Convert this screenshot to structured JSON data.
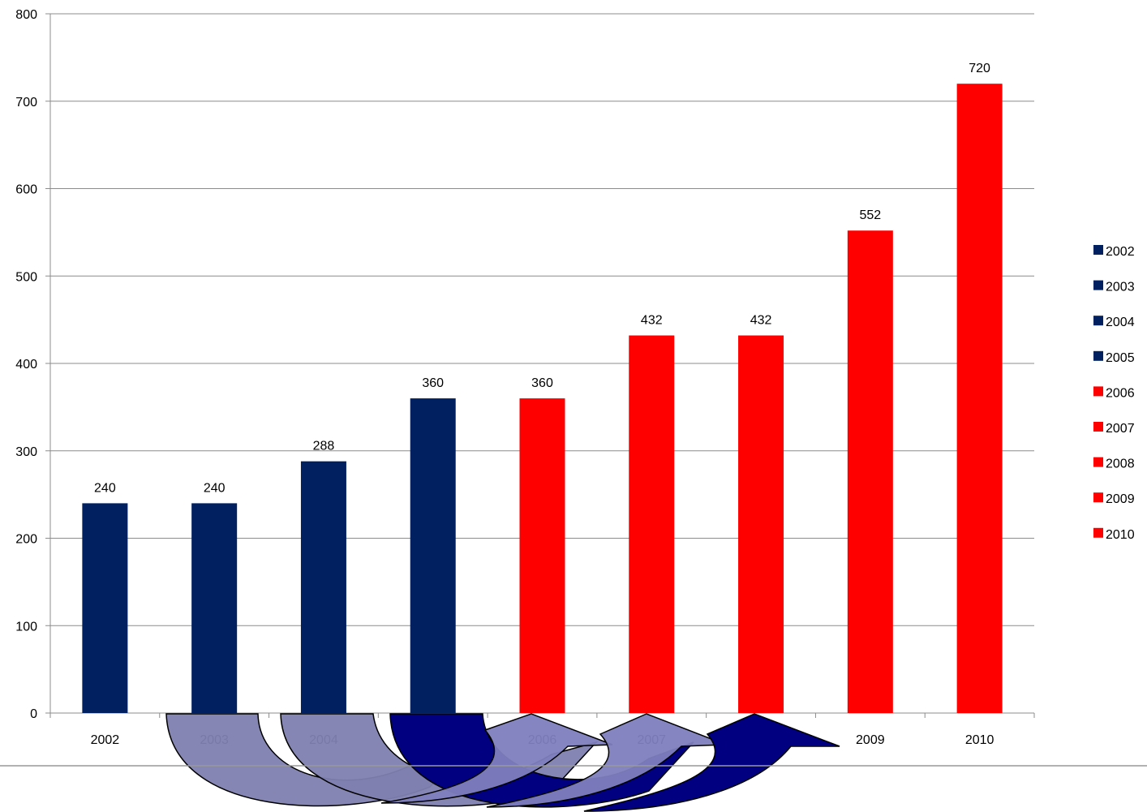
{
  "chart_data": {
    "type": "bar",
    "categories": [
      "2002",
      "2003",
      "2004",
      "2005",
      "2006",
      "2007",
      "2008",
      "2009",
      "2010"
    ],
    "values": [
      240,
      240,
      288,
      360,
      360,
      432,
      432,
      552,
      720
    ],
    "data_labels": [
      "240",
      "240",
      "288",
      "360",
      "360",
      "432",
      "432",
      "552",
      "720"
    ],
    "x_tick_labels": [
      "2002",
      "2003",
      "2004",
      "",
      "2006",
      "2007",
      "",
      "2009",
      "2010"
    ],
    "y_ticks": [
      0,
      100,
      200,
      300,
      400,
      500,
      600,
      700,
      800
    ],
    "y_tick_labels": [
      "0",
      "100",
      "200",
      "300",
      "400",
      "500",
      "600",
      "700",
      "800"
    ],
    "ylim": [
      0,
      800
    ],
    "grid": true,
    "legend_position": "right",
    "legend": [
      "2002",
      "2003",
      "2004",
      "2005",
      "2006",
      "2007",
      "2008",
      "2009",
      "2010"
    ],
    "bar_colors": [
      "#002060",
      "#002060",
      "#002060",
      "#002060",
      "#ff0000",
      "#ff0000",
      "#ff0000",
      "#ff0000",
      "#ff0000"
    ],
    "title": "",
    "xlabel": "",
    "ylabel": ""
  },
  "overlay": {
    "arrow_colors": {
      "light": "#7f7fb0",
      "mid": "#7e7ebe",
      "dark": "#000080"
    }
  }
}
